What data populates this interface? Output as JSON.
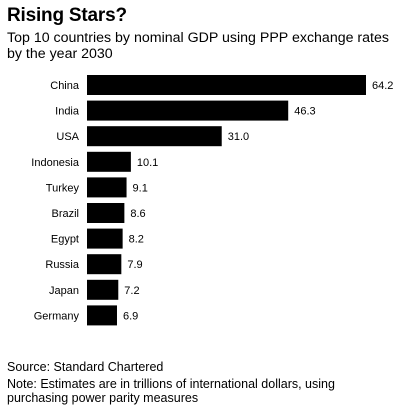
{
  "header": {
    "title": "Rising Stars?",
    "subtitle": "Top 10 countries by nominal GDP using PPP exchange rates by the year 2030"
  },
  "footer": {
    "source": "Source: Standard Chartered",
    "note": "Note: Estimates are in trillions of international dollars, using purchasing power parity measures"
  },
  "colors": {
    "bar": "#000000",
    "text": "#000000",
    "background": "#ffffff"
  },
  "chart_data": {
    "type": "bar",
    "orientation": "horizontal",
    "title": "Rising Stars?",
    "subtitle": "Top 10 countries by nominal GDP using PPP exchange rates by the year 2030",
    "categories": [
      "China",
      "India",
      "USA",
      "Indonesia",
      "Turkey",
      "Brazil",
      "Egypt",
      "Russia",
      "Japan",
      "Germany"
    ],
    "values": [
      64.2,
      46.3,
      31.0,
      10.1,
      9.1,
      8.6,
      8.2,
      7.9,
      7.2,
      6.9
    ],
    "value_labels": [
      "64.2",
      "46.3",
      "31.0",
      "10.1",
      "9.1",
      "8.6",
      "8.2",
      "7.9",
      "7.2",
      "6.9"
    ],
    "xlim": [
      0,
      64.2
    ],
    "grid": false,
    "legend": "none"
  }
}
